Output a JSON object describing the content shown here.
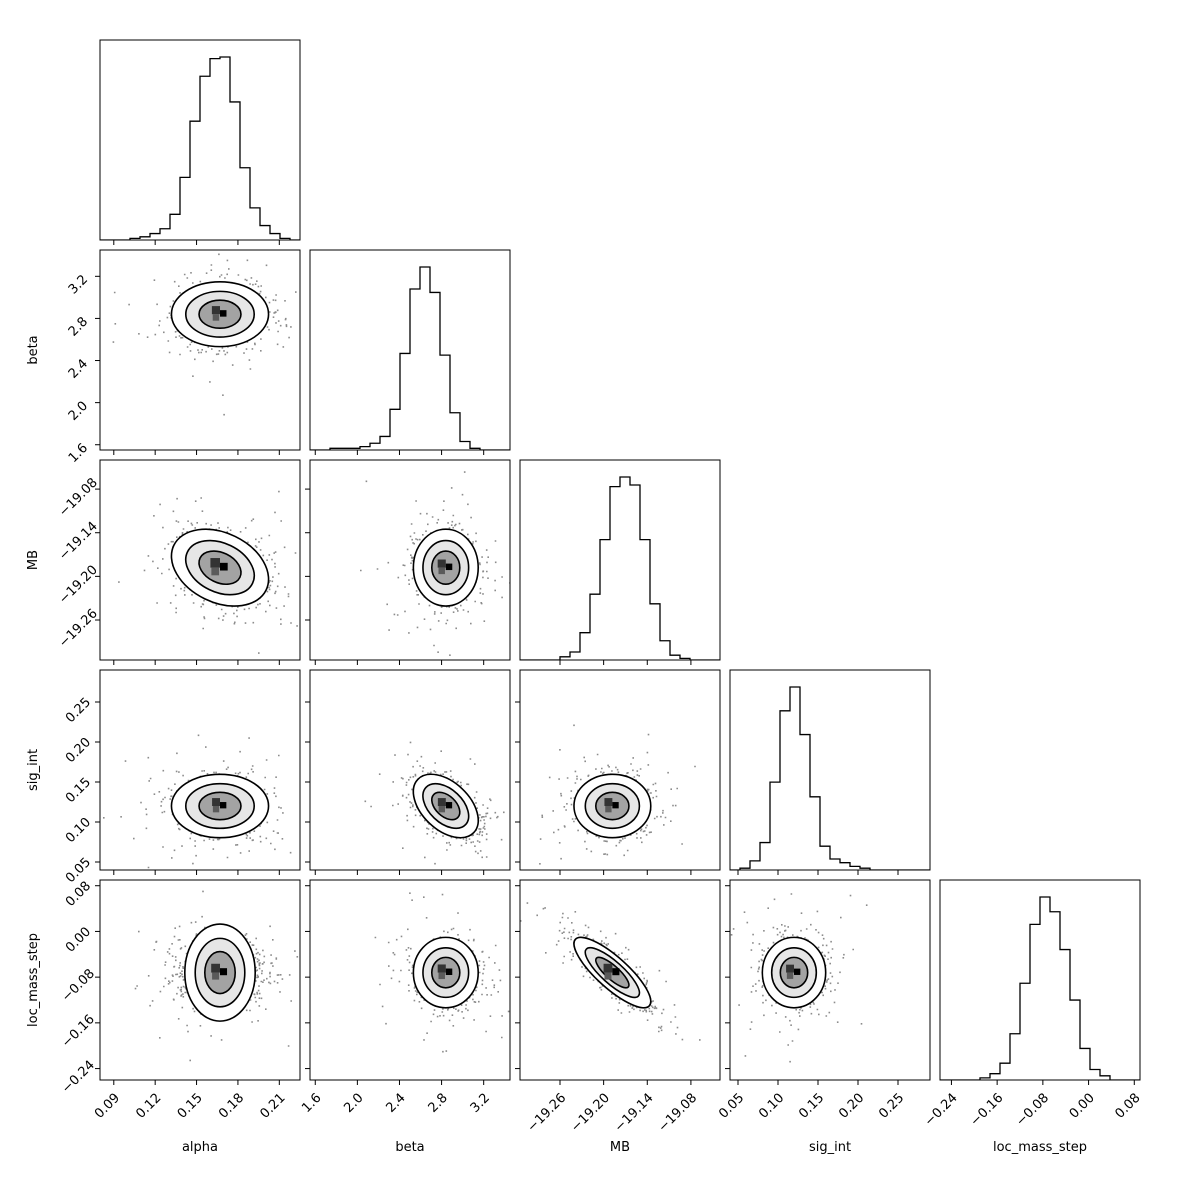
{
  "chart_data": {
    "type": "corner",
    "colors": {
      "ink": "#000000",
      "background": "#ffffff"
    },
    "parameters": [
      {
        "name": "alpha",
        "range": [
          0.08,
          0.225
        ],
        "ticks": [
          {
            "value": 0.09,
            "label": "0.09"
          },
          {
            "value": 0.12,
            "label": "0.12"
          },
          {
            "value": 0.15,
            "label": "0.15"
          },
          {
            "value": 0.18,
            "label": "0.18"
          },
          {
            "value": 0.21,
            "label": "0.21"
          }
        ],
        "mean": 0.167,
        "sd": 0.016,
        "histogram": [
          0,
          0,
          0,
          1,
          2,
          4,
          7,
          16,
          39,
          74,
          102,
          113,
          114,
          86,
          45,
          20,
          9,
          4,
          1,
          0
        ]
      },
      {
        "name": "beta",
        "range": [
          1.55,
          3.45
        ],
        "ticks": [
          {
            "value": 1.6,
            "label": "1.6"
          },
          {
            "value": 2.0,
            "label": "2.0"
          },
          {
            "value": 2.4,
            "label": "2.4"
          },
          {
            "value": 2.8,
            "label": "2.8"
          },
          {
            "value": 3.2,
            "label": "3.2"
          }
        ],
        "mean": 2.84,
        "sd": 0.14,
        "histogram": [
          0,
          0,
          1,
          1,
          1,
          2,
          4,
          8,
          24,
          57,
          95,
          108,
          93,
          56,
          22,
          5,
          1,
          0,
          0,
          0
        ]
      },
      {
        "name": "MB",
        "range": [
          -19.315,
          -19.04
        ],
        "ticks": [
          {
            "value": -19.26,
            "label": "−19.26"
          },
          {
            "value": -19.2,
            "label": "−19.20"
          },
          {
            "value": -19.14,
            "label": "−19.14"
          },
          {
            "value": -19.08,
            "label": "−19.08"
          }
        ],
        "mean": -19.188,
        "sd": 0.024,
        "histogram": [
          0,
          0,
          0,
          0,
          2,
          5,
          17,
          41,
          75,
          108,
          114,
          109,
          75,
          35,
          12,
          3,
          1,
          0,
          0,
          0
        ]
      },
      {
        "name": "sig_int",
        "range": [
          0.04,
          0.29
        ],
        "ticks": [
          {
            "value": 0.05,
            "label": "0.05"
          },
          {
            "value": 0.1,
            "label": "0.10"
          },
          {
            "value": 0.15,
            "label": "0.15"
          },
          {
            "value": 0.2,
            "label": "0.20"
          },
          {
            "value": 0.25,
            "label": "0.25"
          }
        ],
        "mean": 0.12,
        "sd": 0.018,
        "histogram": [
          0,
          1,
          5,
          15,
          48,
          87,
          100,
          74,
          40,
          13,
          6,
          4,
          2,
          1,
          0,
          0,
          0,
          0,
          0,
          0
        ]
      },
      {
        "name": "loc_mass_step",
        "range": [
          -0.26,
          0.09
        ],
        "ticks": [
          {
            "value": -0.24,
            "label": "−0.24"
          },
          {
            "value": -0.16,
            "label": "−0.16"
          },
          {
            "value": -0.08,
            "label": "−0.08"
          },
          {
            "value": 0.0,
            "label": "0.00"
          },
          {
            "value": 0.08,
            "label": "0.08"
          }
        ],
        "mean": -0.072,
        "sd": 0.028,
        "histogram": [
          0,
          0,
          0,
          0,
          1,
          3,
          8,
          22,
          46,
          74,
          87,
          80,
          62,
          38,
          15,
          5,
          2,
          0,
          0,
          0
        ]
      }
    ],
    "correlations": [
      {
        "pair": [
          "beta",
          "alpha"
        ],
        "rho": 0.0
      },
      {
        "pair": [
          "MB",
          "alpha"
        ],
        "rho": -0.3
      },
      {
        "pair": [
          "MB",
          "beta"
        ],
        "rho": 0.0
      },
      {
        "pair": [
          "sig_int",
          "alpha"
        ],
        "rho": 0.0
      },
      {
        "pair": [
          "sig_int",
          "beta"
        ],
        "rho": -0.45
      },
      {
        "pair": [
          "sig_int",
          "MB"
        ],
        "rho": 0.0
      },
      {
        "pair": [
          "loc_mass_step",
          "alpha"
        ],
        "rho": 0.0
      },
      {
        "pair": [
          "loc_mass_step",
          "beta"
        ],
        "rho": 0.0
      },
      {
        "pair": [
          "loc_mass_step",
          "MB"
        ],
        "rho": -0.82
      },
      {
        "pair": [
          "loc_mass_step",
          "sig_int"
        ],
        "rho": 0.0
      }
    ]
  }
}
